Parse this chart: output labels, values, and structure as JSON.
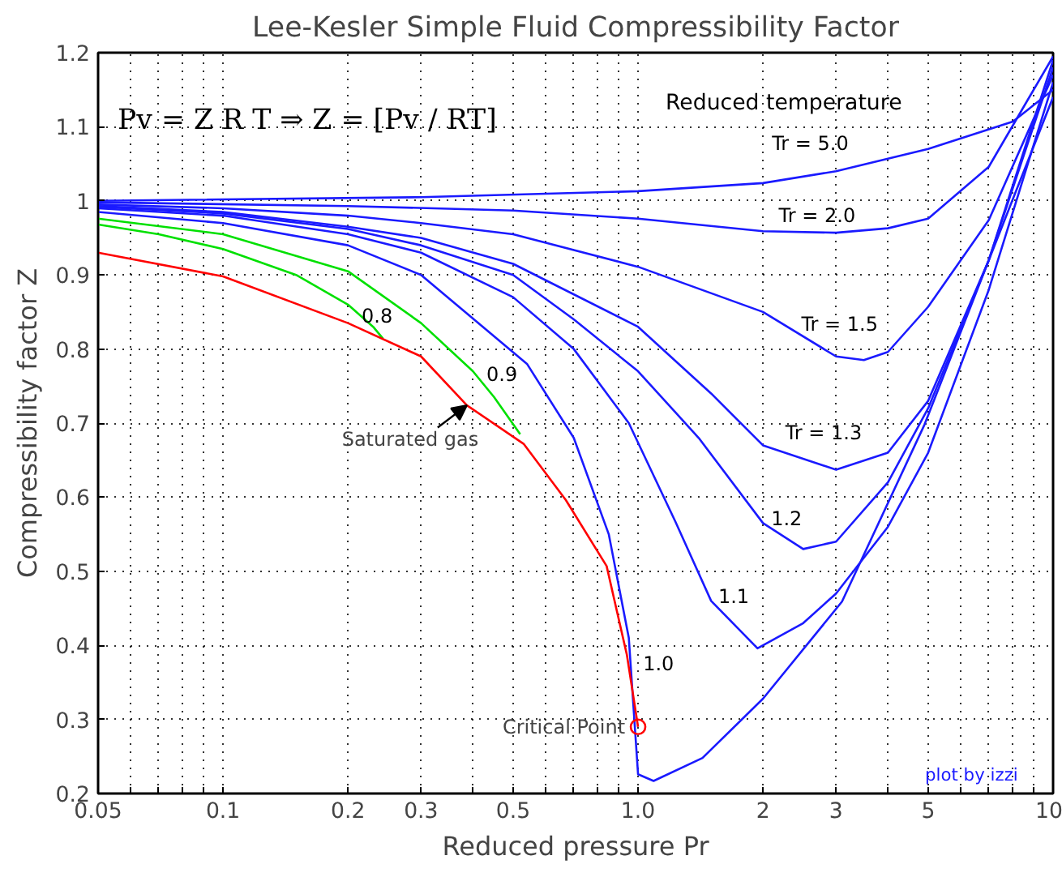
{
  "chart_data": {
    "type": "line",
    "title": "Lee-Kesler Simple Fluid Compressibility Factor",
    "xlabel": "Reduced pressure Pr",
    "ylabel": "Compressibility factor Z",
    "log": "x",
    "grid": true,
    "marker": "none",
    "line_style": "solid",
    "xlim": [
      0.05,
      10
    ],
    "ylim": [
      0.2,
      1.2
    ],
    "xticks": [
      0.05,
      {
        "value": 0.06,
        "label": null
      },
      {
        "value": 0.07,
        "label": null
      },
      {
        "value": 0.08,
        "label": null
      },
      {
        "value": 0.09,
        "label": null
      },
      0.1,
      0.2,
      0.3,
      {
        "value": 0.4,
        "label": null
      },
      0.5,
      {
        "value": 0.6,
        "label": null
      },
      {
        "value": 0.7,
        "label": null
      },
      {
        "value": 0.8,
        "label": null
      },
      {
        "value": 0.9,
        "label": null
      },
      {
        "value": 1,
        "label": "1.0"
      },
      2,
      3,
      {
        "value": 4,
        "label": null
      },
      5,
      {
        "value": 6,
        "label": null
      },
      {
        "value": 7,
        "label": null
      },
      {
        "value": 8,
        "label": null
      },
      {
        "value": 9,
        "label": null
      },
      10
    ],
    "yticks": [
      0.2,
      0.3,
      0.4,
      0.5,
      0.6,
      0.7,
      0.8,
      0.9,
      {
        "value": 1,
        "label": "1"
      },
      1.1,
      1.2
    ],
    "series": [
      {
        "name": "Tr = 5.0",
        "color": "#1a1aff",
        "x": [
          0.05,
          0.3,
          1,
          2,
          3,
          5,
          8,
          10
        ],
        "values": [
          1.0,
          1.005,
          1.013,
          1.024,
          1.04,
          1.07,
          1.107,
          1.15
        ]
      },
      {
        "name": "Tr = 2.0",
        "color": "#1a1aff",
        "x": [
          0.05,
          0.2,
          0.5,
          1,
          2,
          3,
          4,
          5,
          7,
          10
        ],
        "values": [
          0.998,
          0.993,
          0.987,
          0.976,
          0.959,
          0.957,
          0.963,
          0.976,
          1.046,
          1.195
        ]
      },
      {
        "name": "Tr = 1.5",
        "color": "#1a1aff",
        "x": [
          0.05,
          0.1,
          0.2,
          0.3,
          0.5,
          1,
          2,
          3,
          3.5,
          4,
          5,
          7,
          10
        ],
        "values": [
          0.995,
          0.99,
          0.98,
          0.97,
          0.955,
          0.911,
          0.85,
          0.79,
          0.785,
          0.796,
          0.857,
          0.974,
          1.17
        ]
      },
      {
        "name": "Tr = 1.3",
        "color": "#1a1aff",
        "x": [
          0.05,
          0.1,
          0.2,
          0.3,
          0.5,
          1,
          1.5,
          2,
          3,
          4,
          5,
          7,
          10
        ],
        "values": [
          0.993,
          0.985,
          0.965,
          0.95,
          0.915,
          0.83,
          0.74,
          0.67,
          0.637,
          0.66,
          0.73,
          0.92,
          1.19
        ]
      },
      {
        "name": "1.2",
        "color": "#1a1aff",
        "x": [
          0.05,
          0.1,
          0.2,
          0.3,
          0.5,
          0.7,
          1,
          1.4,
          2,
          2.5,
          3,
          4,
          5,
          7,
          10
        ],
        "values": [
          0.992,
          0.983,
          0.962,
          0.94,
          0.9,
          0.84,
          0.77,
          0.68,
          0.565,
          0.53,
          0.54,
          0.62,
          0.72,
          0.92,
          1.18
        ]
      },
      {
        "name": "1.1",
        "color": "#1a1aff",
        "x": [
          0.05,
          0.1,
          0.2,
          0.3,
          0.5,
          0.7,
          0.95,
          1.23,
          1.5,
          1.94,
          2.5,
          3,
          4,
          5,
          7,
          10
        ],
        "values": [
          0.99,
          0.98,
          0.955,
          0.93,
          0.87,
          0.8,
          0.7,
          0.567,
          0.46,
          0.396,
          0.43,
          0.47,
          0.56,
          0.66,
          0.88,
          1.16
        ]
      },
      {
        "name": "1.0",
        "color": "#1a1aff",
        "x": [
          0.05,
          0.1,
          0.2,
          0.3,
          0.54,
          0.7,
          0.85,
          0.95,
          1.0,
          1.09,
          1.43,
          2,
          3.1,
          4.9,
          7,
          10
        ],
        "values": [
          0.985,
          0.97,
          0.94,
          0.9,
          0.78,
          0.68,
          0.55,
          0.41,
          0.226,
          0.217,
          0.248,
          0.328,
          0.459,
          0.698,
          0.92,
          1.14
        ]
      },
      {
        "name": "0.9",
        "color": "#00e000",
        "x": [
          0.05,
          0.1,
          0.2,
          0.3,
          0.4,
          0.45,
          0.52
        ],
        "values": [
          0.976,
          0.955,
          0.905,
          0.835,
          0.77,
          0.735,
          0.685
        ]
      },
      {
        "name": "0.8",
        "color": "#00e000",
        "x": [
          0.05,
          0.07,
          0.1,
          0.15,
          0.2,
          0.23,
          0.243
        ],
        "values": [
          0.968,
          0.955,
          0.935,
          0.9,
          0.86,
          0.83,
          0.814
        ]
      },
      {
        "color": "#ff0000",
        "x": [
          0.05,
          0.1,
          0.2,
          0.3,
          0.387,
          0.53,
          0.67,
          0.84,
          0.94,
          1.0
        ],
        "values": [
          0.93,
          0.898,
          0.835,
          0.79,
          0.724,
          0.672,
          0.596,
          0.507,
          0.387,
          0.29
        ]
      },
      {
        "type": "scatter",
        "marker": "circle",
        "color": "#ff0000",
        "x": [
          1.0
        ],
        "values": [
          0.29
        ]
      }
    ],
    "annotations": [
      "Pv = Z R T ⇒ Z = [Pv / RT]",
      "Reduced temperature",
      "plot by izzi",
      {
        "text": "Saturated gas",
        "x": 0.387,
        "y": 0.724
      },
      {
        "text": "Critical Point",
        "x": 1.0,
        "y": 0.29
      }
    ]
  }
}
